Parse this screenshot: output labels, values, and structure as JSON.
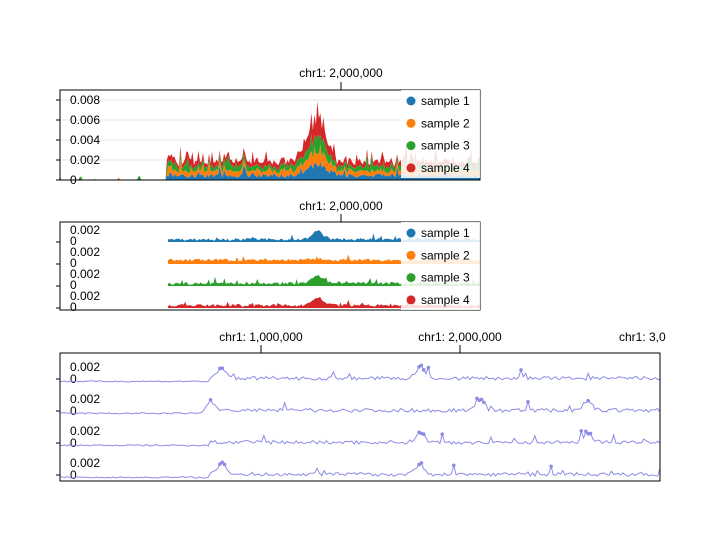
{
  "colors": {
    "sample1": "#1f77b4",
    "sample2": "#ff7f0e",
    "sample3": "#2ca02c",
    "sample4": "#d62728",
    "line": "#8c8ce6",
    "grid": "#e6e6e6",
    "legend_bg": "#ffffff"
  },
  "chart_data": [
    {
      "id": "stacked-bar-track",
      "type": "area",
      "stacked": true,
      "top_tick": "chr1: 2,000,000",
      "y_ticks": [
        "0.008",
        "0.006",
        "0.004",
        "0.002",
        "0"
      ],
      "y_tick_values": [
        0.008,
        0.006,
        0.004,
        0.002,
        0
      ],
      "ylim": [
        0,
        0.009
      ],
      "grid": true,
      "legend_placement": "right",
      "series": [
        {
          "name": "sample 1"
        },
        {
          "name": "sample 2"
        },
        {
          "name": "sample 3"
        },
        {
          "name": "sample 4"
        }
      ]
    },
    {
      "id": "multi-row-area-track",
      "type": "area",
      "stacked": false,
      "top_tick": "chr1: 2,000,000",
      "row_y_ticks": [
        "0.002",
        "0"
      ],
      "ylim": [
        0,
        0.003
      ],
      "legend_placement": "right",
      "series": [
        {
          "name": "sample 1"
        },
        {
          "name": "sample 2"
        },
        {
          "name": "sample 3"
        },
        {
          "name": "sample 4"
        }
      ]
    },
    {
      "id": "multi-row-line-track",
      "type": "line",
      "top_ticks": [
        "chr1: 1,000,000",
        "chr1: 2,000,000",
        "chr1: 3,0"
      ],
      "row_y_ticks": [
        "0.002",
        "0"
      ],
      "ylim": [
        0,
        0.003
      ],
      "rows": 4
    }
  ]
}
